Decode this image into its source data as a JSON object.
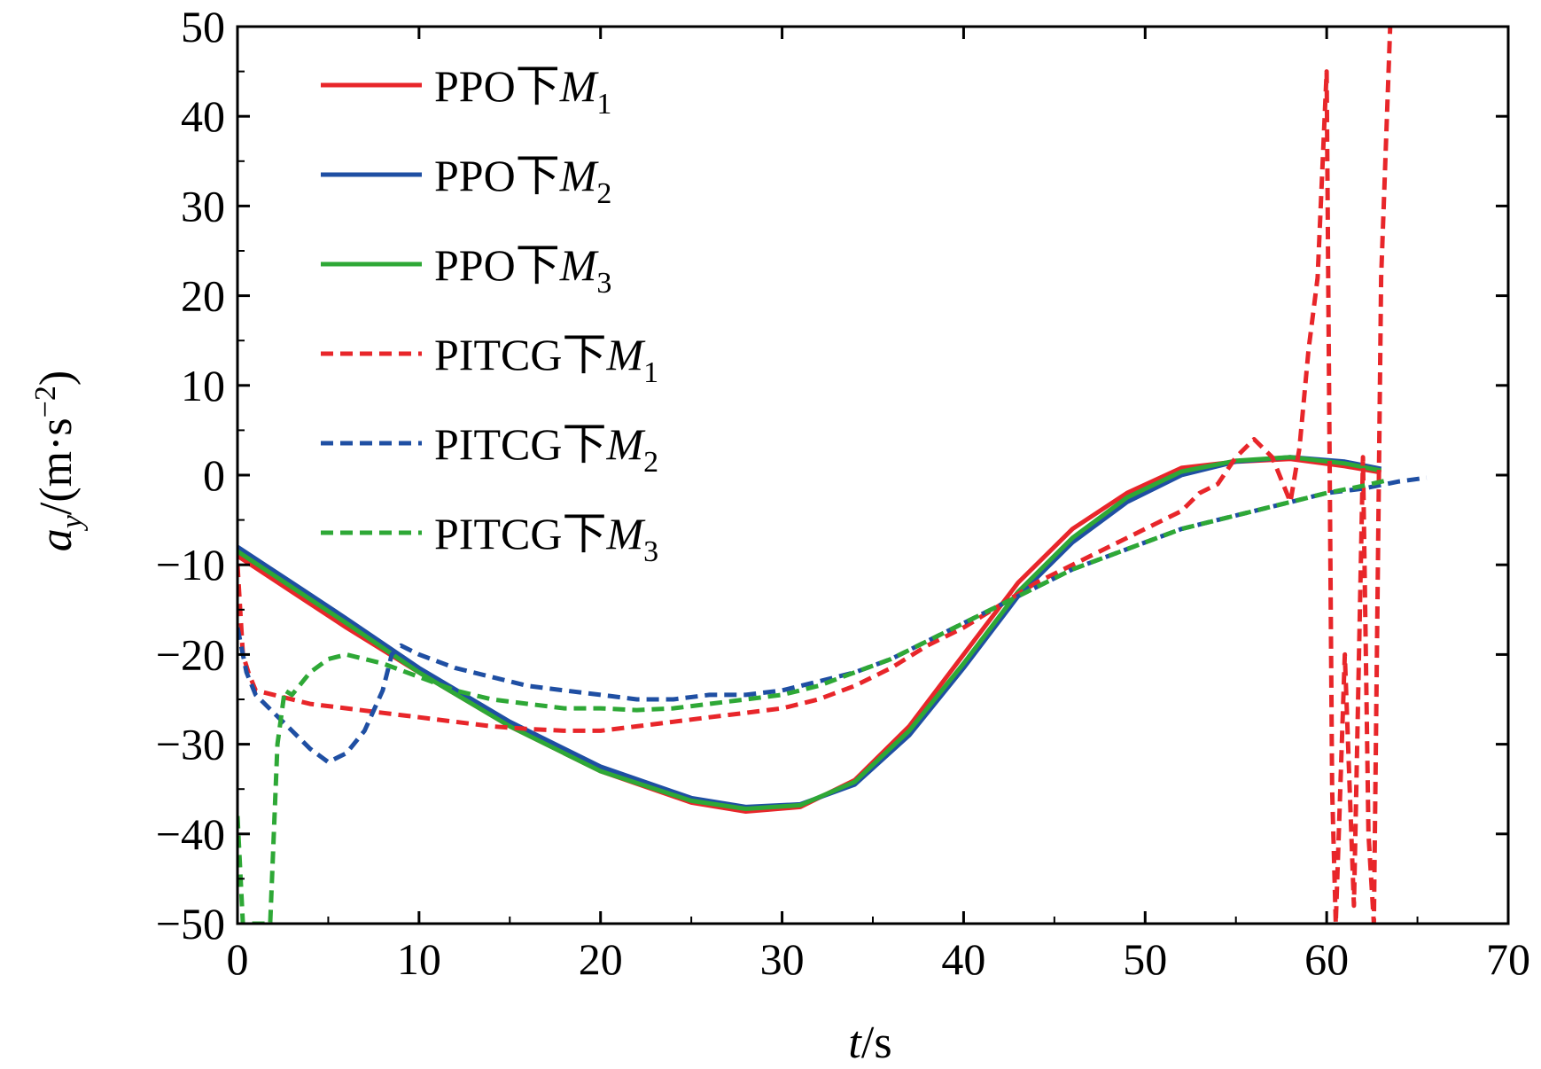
{
  "chart_data": {
    "type": "line",
    "title": "",
    "xlabel": {
      "var": "t",
      "unit": "/s"
    },
    "ylabel": {
      "var": "a",
      "sub": "y",
      "unit_pre": "/(m·s",
      "unit_sup": "−2",
      "unit_post": ")"
    },
    "xlim": [
      0,
      70
    ],
    "ylim": [
      -50,
      50
    ],
    "xticks": [
      0,
      10,
      20,
      30,
      40,
      50,
      60,
      70
    ],
    "yticks": [
      -50,
      -40,
      -30,
      -20,
      -10,
      0,
      10,
      20,
      30,
      40,
      50
    ],
    "ytick_labels": [
      "−50",
      "−40",
      "−30",
      "−20",
      "−10",
      "0",
      "10",
      "20",
      "30",
      "40",
      "50"
    ],
    "grid": false,
    "legend_position": "top-left",
    "series": [
      {
        "name": "PPO下M1",
        "prefix": "PPO下",
        "var": "M",
        "sub": "1",
        "color": "#e8262a",
        "dash": "solid",
        "x": [
          0,
          3,
          6,
          10,
          15,
          20,
          25,
          28,
          31,
          34,
          37,
          40,
          43,
          46,
          49,
          52,
          55,
          58,
          61,
          63
        ],
        "y": [
          -9,
          -13,
          -17,
          -22,
          -28,
          -33,
          -36.5,
          -37.5,
          -37,
          -34,
          -28,
          -20,
          -12,
          -6,
          -2,
          0.8,
          1.5,
          1.8,
          1.0,
          0.3
        ]
      },
      {
        "name": "PPO下M2",
        "prefix": "PPO下",
        "var": "M",
        "sub": "2",
        "color": "#1f4fa3",
        "dash": "solid",
        "x": [
          0,
          3,
          6,
          10,
          15,
          20,
          25,
          28,
          31,
          34,
          37,
          40,
          43,
          46,
          49,
          52,
          55,
          58,
          61,
          63
        ],
        "y": [
          -8,
          -12,
          -16,
          -21.5,
          -27.5,
          -32.5,
          -36,
          -37,
          -36.7,
          -34.5,
          -29,
          -21.5,
          -13.5,
          -7.5,
          -3,
          0,
          1.5,
          2,
          1.5,
          0.7
        ]
      },
      {
        "name": "PPO下M3",
        "prefix": "PPO下",
        "var": "M",
        "sub": "3",
        "color": "#2ea836",
        "dash": "solid",
        "x": [
          0,
          3,
          6,
          10,
          15,
          20,
          25,
          28,
          31,
          34,
          37,
          40,
          43,
          46,
          49,
          52,
          55,
          58,
          61,
          63
        ],
        "y": [
          -8.5,
          -12.5,
          -16.5,
          -22,
          -28,
          -33,
          -36.3,
          -37.2,
          -36.8,
          -34.2,
          -28.5,
          -21,
          -13,
          -7,
          -2.5,
          0.4,
          1.6,
          2,
          1.3,
          0.5
        ]
      },
      {
        "name": "PITCG下M1",
        "prefix": "PITCG下",
        "var": "M",
        "sub": "1",
        "color": "#e8262a",
        "dash": "dashed",
        "x": [
          0,
          0.3,
          0.6,
          1,
          2,
          4,
          6,
          8,
          10,
          12,
          14,
          16,
          18,
          20,
          22,
          24,
          26,
          28,
          30,
          32,
          34,
          36,
          38,
          40,
          42,
          44,
          46,
          48,
          50,
          52,
          53,
          54,
          55,
          56,
          57,
          58,
          58.5,
          59,
          59.5,
          60,
          60.3,
          60.5,
          61,
          61.5,
          62,
          62.3,
          62.6,
          63,
          63.5
        ],
        "y": [
          -10,
          -20,
          -22,
          -24,
          -24.5,
          -25.5,
          -26,
          -26.5,
          -27,
          -27.5,
          -28,
          -28.3,
          -28.5,
          -28.5,
          -28,
          -27.5,
          -27,
          -26.5,
          -26,
          -25,
          -23.5,
          -21.5,
          -19,
          -17,
          -14.5,
          -12,
          -10,
          -8,
          -6,
          -4,
          -2,
          -1,
          2,
          4,
          2,
          -3,
          3,
          14,
          22,
          45,
          -35,
          -50,
          -20,
          -48,
          2,
          -40,
          -50,
          22,
          50
        ]
      },
      {
        "name": "PITCG下M2",
        "prefix": "PITCG下",
        "var": "M",
        "sub": "2",
        "color": "#1f4fa3",
        "dash": "dashed",
        "x": [
          0,
          0.5,
          1,
          2,
          3,
          4,
          5,
          6,
          7,
          8,
          8.5,
          9,
          10,
          12,
          14,
          16,
          18,
          20,
          22,
          24,
          26,
          28,
          30,
          32,
          34,
          36,
          38,
          40,
          42,
          44,
          46,
          48,
          50,
          52,
          54,
          56,
          58,
          60,
          62,
          64,
          65.5
        ],
        "y": [
          -17,
          -22,
          -24.5,
          -26.5,
          -28.5,
          -30.5,
          -32,
          -31,
          -28.5,
          -24,
          -20,
          -19,
          -20,
          -21.5,
          -22.5,
          -23.5,
          -24,
          -24.5,
          -25,
          -25,
          -24.5,
          -24.5,
          -24,
          -23,
          -22,
          -20.5,
          -18.5,
          -16.5,
          -14.5,
          -12.5,
          -10.5,
          -9,
          -7.5,
          -6,
          -5,
          -4,
          -3,
          -2,
          -1.5,
          -0.7,
          -0.3
        ]
      },
      {
        "name": "PITCG下M3",
        "prefix": "PITCG下",
        "var": "M",
        "sub": "3",
        "color": "#2ea836",
        "dash": "dashed",
        "x": [
          0,
          0.3,
          0.6,
          1.8,
          2.2,
          2.6,
          3,
          4,
          5,
          6,
          7,
          8,
          10,
          12,
          14,
          16,
          18,
          20,
          22,
          24,
          26,
          28,
          30,
          32,
          34,
          36,
          38,
          40,
          42,
          44,
          46,
          48,
          50,
          52,
          54,
          56,
          58,
          60,
          62,
          63.5
        ],
        "y": [
          -38,
          -50,
          -50,
          -50,
          -30,
          -24,
          -24.5,
          -22,
          -20.5,
          -20,
          -20.5,
          -21,
          -22.5,
          -24,
          -25,
          -25.5,
          -26,
          -26,
          -26.2,
          -26,
          -25.5,
          -25,
          -24.5,
          -23.5,
          -22,
          -20.5,
          -18.5,
          -16.5,
          -14.5,
          -12.5,
          -10.5,
          -9,
          -7.5,
          -6,
          -5,
          -4,
          -3,
          -2,
          -1.2,
          -0.5
        ]
      }
    ]
  }
}
